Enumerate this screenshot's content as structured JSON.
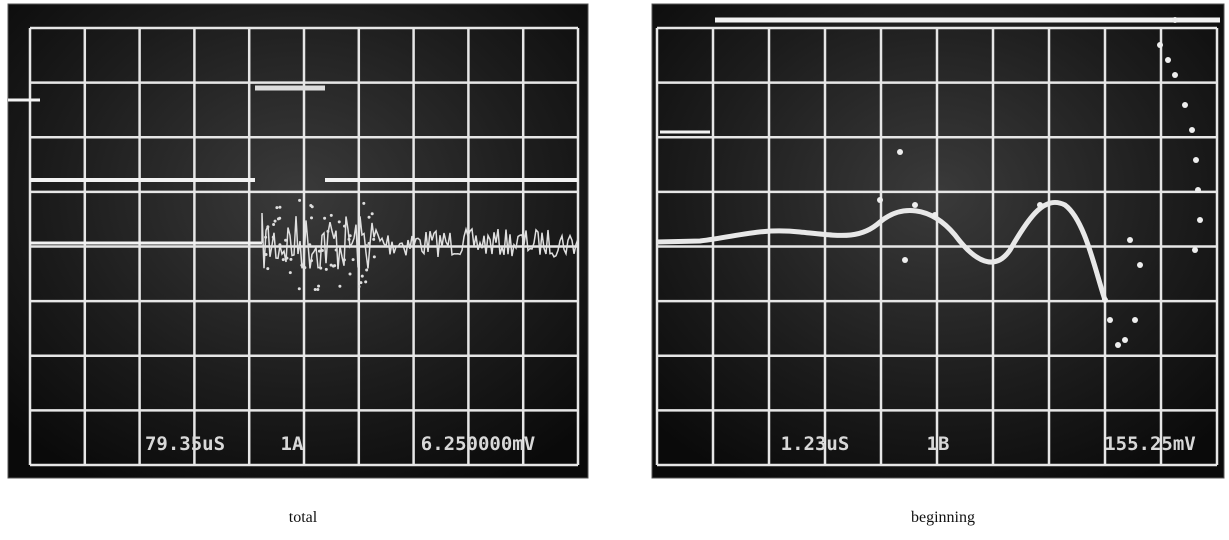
{
  "panels": [
    {
      "readouts": [
        "79.35uS",
        "1A",
        "6.250000mV"
      ],
      "caption": "total"
    },
    {
      "readouts": [
        "1.23uS",
        "1B",
        "155.25mV"
      ],
      "caption": "beginning"
    }
  ]
}
